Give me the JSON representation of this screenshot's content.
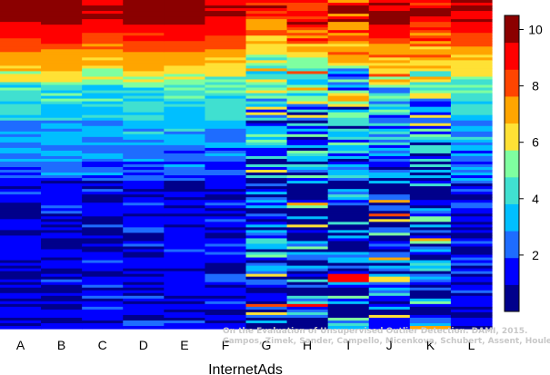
{
  "chart_data": {
    "type": "heatmap",
    "title": "",
    "xlabel": "InternetAds",
    "ylabel": "",
    "columns": [
      "A",
      "B",
      "C",
      "D",
      "E",
      "F",
      "G",
      "H",
      "I",
      "J",
      "K",
      "L"
    ],
    "colorbar": {
      "ticks": [
        2,
        4,
        6,
        8,
        10
      ],
      "range": [
        0,
        10.5
      ],
      "colors": [
        "#00008b",
        "#0000ff",
        "#1e6cff",
        "#00bfff",
        "#40e0d0",
        "#7fffa0",
        "#ffe135",
        "#ffa500",
        "#ff4500",
        "#ff0000",
        "#8b0000"
      ]
    },
    "legend_position": "right",
    "grid": false
  },
  "caption": {
    "line1": "On the Evaluation of Unsupervised Outlier Detection. DAMI, 2015.",
    "line2": "Campos, Zimek, Sander, Campello, Micenkova, Schubert, Assent, Houle"
  }
}
